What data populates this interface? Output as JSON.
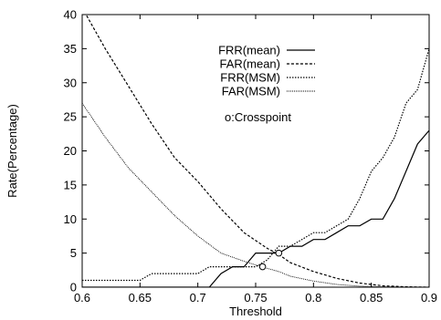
{
  "chart_data": {
    "type": "line",
    "xlabel": "Threshold",
    "ylabel": "Rate(Percentage)",
    "xlim": [
      0.6,
      0.9
    ],
    "ylim": [
      0,
      40
    ],
    "xticks": [
      "0.6",
      "0.65",
      "0.7",
      "0.75",
      "0.8",
      "0.85",
      "0.9"
    ],
    "yticks": [
      "0",
      "5",
      "10",
      "15",
      "20",
      "25",
      "30",
      "35",
      "40"
    ],
    "grid": false,
    "legend_position": "top-right",
    "series": [
      {
        "name": "FRR(mean)",
        "style": "solid",
        "x": [
          0.6,
          0.71,
          0.72,
          0.73,
          0.74,
          0.75,
          0.77,
          0.78,
          0.79,
          0.8,
          0.81,
          0.82,
          0.83,
          0.84,
          0.85,
          0.86,
          0.87,
          0.88,
          0.89,
          0.9
        ],
        "y": [
          0,
          0,
          2,
          3,
          3,
          5,
          5,
          6,
          6,
          7,
          7,
          8,
          9,
          9,
          10,
          10,
          13,
          17,
          21,
          23
        ]
      },
      {
        "name": "FAR(mean)",
        "style": "dashed",
        "x": [
          0.6,
          0.62,
          0.64,
          0.66,
          0.68,
          0.7,
          0.72,
          0.74,
          0.76,
          0.77,
          0.78,
          0.8,
          0.82,
          0.84,
          0.86,
          0.88,
          0.9
        ],
        "y": [
          41,
          35,
          29.5,
          24,
          19,
          15.5,
          11.5,
          8,
          5.7,
          4.8,
          3.6,
          2.3,
          1.3,
          0.6,
          0.2,
          0.05,
          0
        ]
      },
      {
        "name": "FRR(MSM)",
        "style": "dotted",
        "x": [
          0.6,
          0.65,
          0.66,
          0.7,
          0.71,
          0.75,
          0.76,
          0.77,
          0.78,
          0.79,
          0.8,
          0.81,
          0.82,
          0.83,
          0.84,
          0.85,
          0.86,
          0.87,
          0.88,
          0.89,
          0.9
        ],
        "y": [
          1,
          1,
          2,
          2,
          3,
          3,
          4,
          6,
          6,
          7,
          8,
          8,
          9,
          10,
          13,
          17,
          19,
          22,
          27,
          29,
          35
        ]
      },
      {
        "name": "FAR(MSM)",
        "style": "dotted-fine",
        "x": [
          0.6,
          0.62,
          0.64,
          0.66,
          0.68,
          0.7,
          0.72,
          0.74,
          0.755,
          0.77,
          0.78,
          0.8,
          0.82,
          0.84,
          0.86,
          0.88,
          0.9
        ],
        "y": [
          27,
          22,
          17.5,
          14,
          10.5,
          7.5,
          5,
          3.8,
          3,
          2.3,
          1.6,
          0.9,
          0.4,
          0.15,
          0.05,
          0,
          0
        ]
      }
    ],
    "crosspoints": [
      {
        "x": 0.77,
        "y": 5
      },
      {
        "x": 0.756,
        "y": 3
      }
    ],
    "annotation": "o:Crosspoint"
  }
}
